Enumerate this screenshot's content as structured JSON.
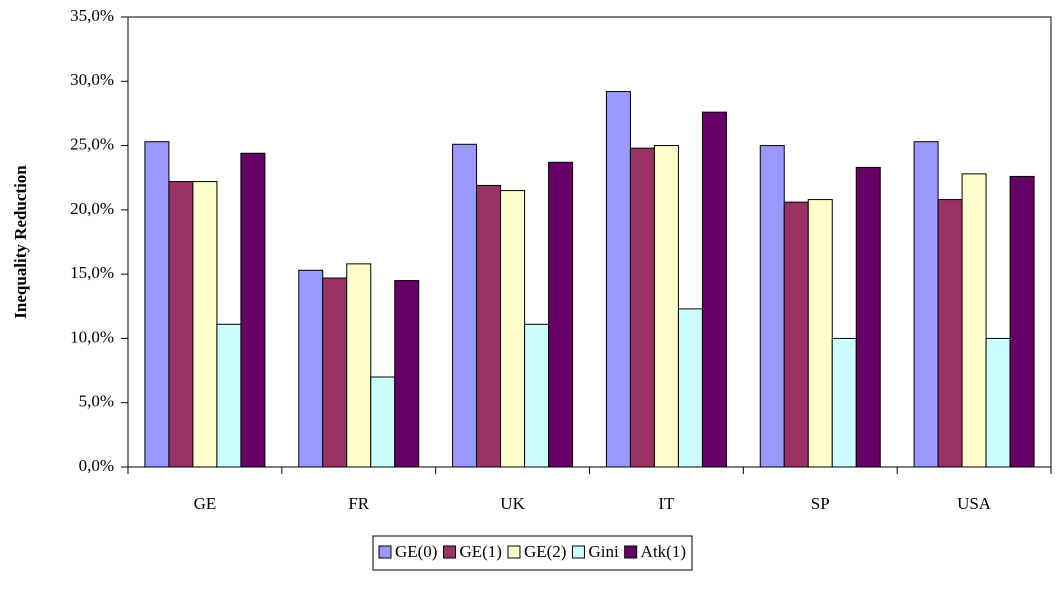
{
  "chart_data": {
    "type": "bar",
    "y_label": "Inequality Reduction",
    "categories": [
      "GE",
      "FR",
      "UK",
      "IT",
      "SP",
      "USA"
    ],
    "series": [
      {
        "name": "GE(0)",
        "color": "#9999ff",
        "values": [
          25.3,
          15.3,
          25.1,
          29.2,
          25.0,
          25.3
        ]
      },
      {
        "name": "GE(1)",
        "color": "#993366",
        "values": [
          22.2,
          14.7,
          21.9,
          24.8,
          20.6,
          20.8
        ]
      },
      {
        "name": "GE(2)",
        "color": "#ffffcc",
        "values": [
          22.2,
          15.8,
          21.5,
          25.0,
          20.8,
          22.8
        ]
      },
      {
        "name": "Gini",
        "color": "#ccffff",
        "values": [
          11.1,
          7.0,
          11.1,
          12.3,
          10.0,
          10.0
        ]
      },
      {
        "name": "Atk(1)",
        "color": "#660066",
        "values": [
          24.4,
          14.5,
          23.7,
          27.6,
          23.3,
          22.6
        ]
      }
    ],
    "ylim": [
      0,
      35
    ],
    "yticks": [
      {
        "value": 0,
        "label": "0,0%"
      },
      {
        "value": 5,
        "label": "5,0%"
      },
      {
        "value": 10,
        "label": "10,0%"
      },
      {
        "value": 15,
        "label": "15,0%"
      },
      {
        "value": 20,
        "label": "20,0%"
      },
      {
        "value": 25,
        "label": "25,0%"
      },
      {
        "value": 30,
        "label": "30,0%"
      },
      {
        "value": 35,
        "label": "35,0%"
      }
    ],
    "grid": false,
    "legend": "bottom"
  }
}
